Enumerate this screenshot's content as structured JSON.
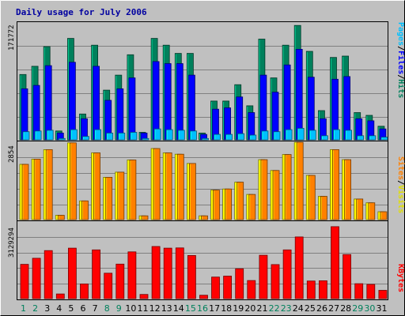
{
  "chart_data": {
    "type": "bar",
    "title": "Daily usage for July 2006",
    "colors": {
      "background": "#c0c0c0",
      "frame_border": "#0000a0",
      "gridline": "#808080",
      "hits": "#00805c",
      "files": "#0000ff",
      "pages": "#00c0ff",
      "visits": "#ffff00",
      "sites": "#ff8000",
      "kbytes": "#ff0000",
      "weekday_label": "#000000",
      "weekend_label": "#00805c"
    },
    "x": {
      "days": [
        "1",
        "2",
        "3",
        "4",
        "5",
        "6",
        "7",
        "8",
        "9",
        "10",
        "11",
        "12",
        "13",
        "14",
        "15",
        "16",
        "17",
        "18",
        "19",
        "20",
        "21",
        "22",
        "23",
        "24",
        "25",
        "26",
        "27",
        "28",
        "29",
        "30",
        "31"
      ],
      "weekend": [
        true,
        true,
        false,
        false,
        false,
        false,
        false,
        true,
        true,
        false,
        false,
        false,
        false,
        false,
        true,
        true,
        false,
        false,
        false,
        false,
        false,
        true,
        true,
        false,
        false,
        false,
        false,
        false,
        true,
        true,
        false
      ]
    },
    "panels": [
      {
        "id": "hits-files-pages",
        "ymax_label": "171772",
        "ylim": [
          0,
          171772
        ],
        "series": [
          {
            "name": "Hits",
            "color": "#00805c",
            "values": [
              96000,
              108000,
              137000,
              13000,
              149000,
              38000,
              139000,
              73000,
              95000,
              125000,
              11000,
              149000,
              139000,
              127000,
              127000,
              10000,
              57000,
              57000,
              81000,
              50000,
              148000,
              91000,
              139000,
              168000,
              130000,
              43000,
              121000,
              123000,
              40000,
              36000,
              20000
            ]
          },
          {
            "name": "Files",
            "color": "#0000ff",
            "values": [
              75000,
              80000,
              109000,
              10000,
              114000,
              31000,
              108000,
              58000,
              75000,
              91000,
              10000,
              115000,
              112000,
              112000,
              95000,
              8000,
              45000,
              47000,
              63000,
              40000,
              95000,
              70000,
              110000,
              133000,
              92000,
              31000,
              89000,
              93000,
              31000,
              28000,
              16000
            ]
          },
          {
            "name": "Pages",
            "color": "#00c0ff",
            "values": [
              12000,
              13000,
              14000,
              2000,
              15000,
              5000,
              15000,
              10000,
              10000,
              11000,
              2000,
              16000,
              15000,
              14000,
              13000,
              2000,
              8000,
              8000,
              9000,
              7000,
              13000,
              12000,
              15000,
              17000,
              14000,
              6000,
              15000,
              14000,
              6000,
              6000,
              4000
            ]
          }
        ]
      },
      {
        "id": "visits-sites",
        "ymax_label": "2854",
        "ylim": [
          0,
          2854
        ],
        "series": [
          {
            "name": "Visits",
            "color": "#ffff00",
            "values": [
              2040,
              2230,
              2580,
              160,
              2830,
              690,
              2460,
              1560,
              1750,
              2200,
              140,
              2620,
              2460,
              2410,
              2070,
              140,
              1090,
              1130,
              1380,
              930,
              2210,
              1810,
              2400,
              2850,
              1630,
              860,
              2580,
              2210,
              760,
              620,
              290
            ]
          },
          {
            "name": "Sites",
            "color": "#ff8000",
            "values": [
              2040,
              2230,
              2580,
              160,
              2830,
              690,
              2460,
              1560,
              1750,
              2200,
              140,
              2620,
              2460,
              2410,
              2070,
              140,
              1090,
              1130,
              1380,
              930,
              2210,
              1810,
              2400,
              2850,
              1630,
              860,
              2580,
              2210,
              760,
              620,
              290
            ]
          }
        ]
      },
      {
        "id": "kbytes",
        "ymax_label": "3129294",
        "ylim": [
          0,
          3129294
        ],
        "series": [
          {
            "name": "KBytes",
            "color": "#ff0000",
            "values": [
              1400000,
              1650000,
              1960000,
              190000,
              2060000,
              600000,
              1990000,
              1040000,
              1410000,
              1910000,
              170000,
              2130000,
              2060000,
              2070000,
              1760000,
              140000,
              880000,
              920000,
              1220000,
              740000,
              1770000,
              1390000,
              1990000,
              2520000,
              720000,
              730000,
              2940000,
              1800000,
              610000,
              580000,
              340000
            ]
          }
        ]
      }
    ]
  }
}
